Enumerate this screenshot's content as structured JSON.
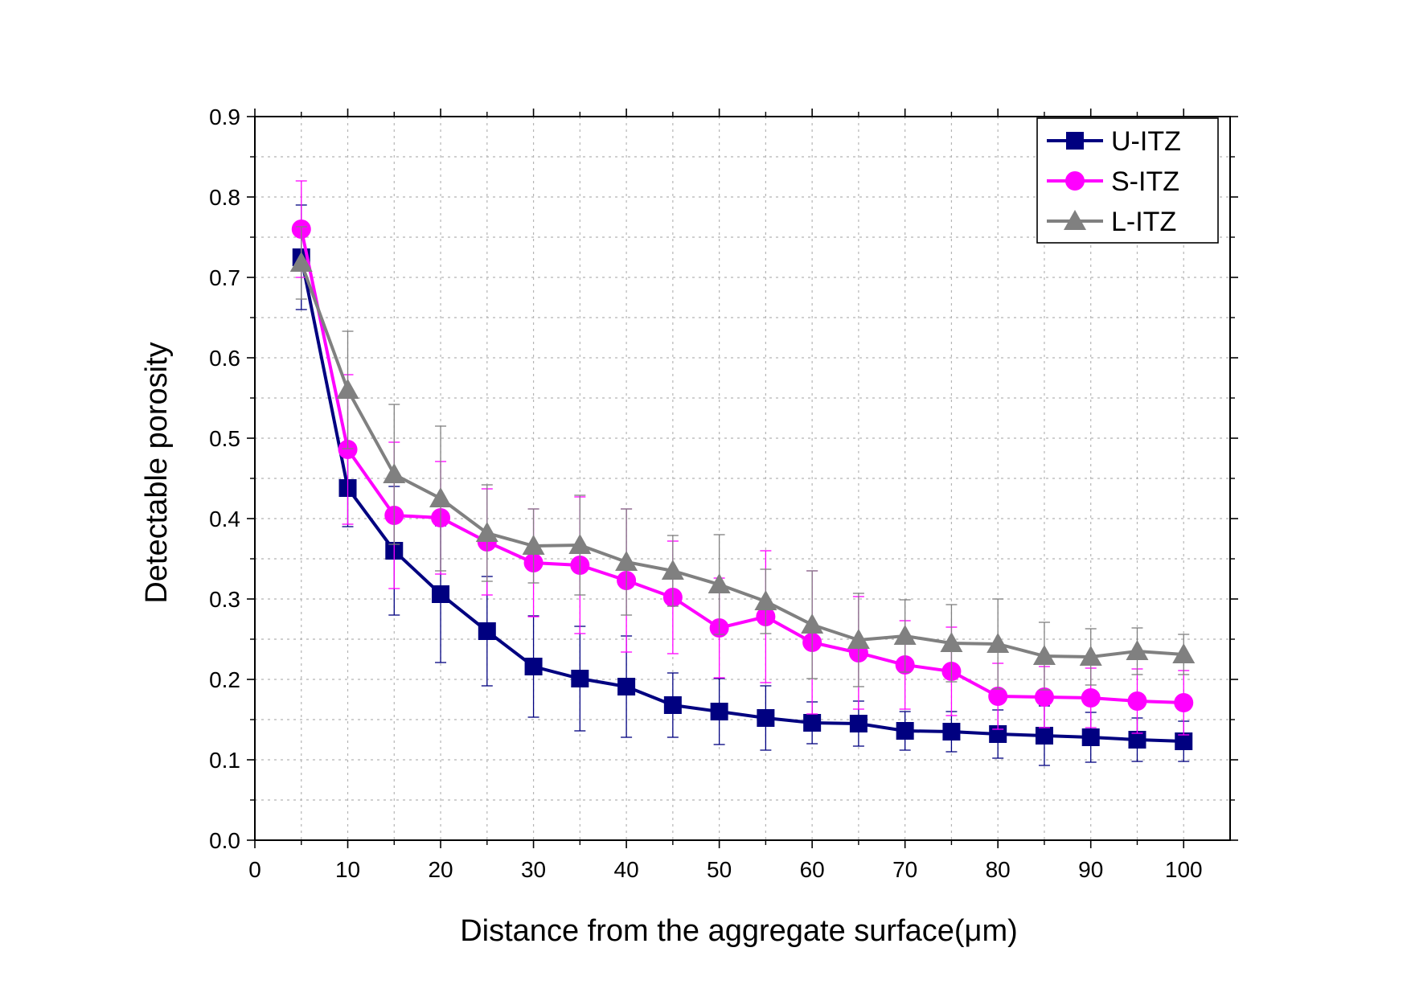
{
  "chart_data": {
    "type": "line",
    "title": "",
    "xlabel": "Distance from the aggregate surface(μm)",
    "ylabel": "Detectable porosity",
    "xlim": [
      0,
      105
    ],
    "ylim": [
      0,
      0.9
    ],
    "x_ticks": [
      "0",
      "10",
      "20",
      "30",
      "40",
      "50",
      "60",
      "70",
      "80",
      "90",
      "100"
    ],
    "y_ticks": [
      "0.0",
      "0.1",
      "0.2",
      "0.3",
      "0.4",
      "0.5",
      "0.6",
      "0.7",
      "0.8",
      "0.9"
    ],
    "grid": true,
    "legend_position": "top-right",
    "x": [
      5,
      10,
      15,
      20,
      25,
      30,
      35,
      40,
      45,
      50,
      55,
      60,
      65,
      70,
      75,
      80,
      85,
      90,
      95,
      100
    ],
    "series": [
      {
        "name": "U-ITZ",
        "color": "#000080",
        "marker": "square",
        "values": [
          0.725,
          0.438,
          0.36,
          0.306,
          0.26,
          0.216,
          0.201,
          0.191,
          0.168,
          0.16,
          0.152,
          0.146,
          0.145,
          0.136,
          0.135,
          0.132,
          0.13,
          0.128,
          0.125,
          0.123
        ],
        "errors": [
          0.065,
          0.048,
          0.08,
          0.085,
          0.068,
          0.063,
          0.065,
          0.063,
          0.04,
          0.041,
          0.04,
          0.026,
          0.028,
          0.024,
          0.025,
          0.03,
          0.037,
          0.031,
          0.027,
          0.025
        ]
      },
      {
        "name": "S-ITZ",
        "color": "#FF00FF",
        "marker": "circle",
        "values": [
          0.76,
          0.486,
          0.404,
          0.401,
          0.371,
          0.345,
          0.342,
          0.323,
          0.302,
          0.264,
          0.278,
          0.246,
          0.233,
          0.218,
          0.21,
          0.179,
          0.178,
          0.177,
          0.173,
          0.171
        ],
        "errors": [
          0.06,
          0.093,
          0.091,
          0.07,
          0.066,
          0.067,
          0.085,
          0.089,
          0.07,
          0.062,
          0.082,
          0.089,
          0.07,
          0.055,
          0.055,
          0.041,
          0.038,
          0.037,
          0.04,
          0.04
        ]
      },
      {
        "name": "L-ITZ",
        "color": "#808080",
        "marker": "triangle",
        "values": [
          0.718,
          0.56,
          0.455,
          0.425,
          0.382,
          0.366,
          0.367,
          0.346,
          0.335,
          0.318,
          0.297,
          0.268,
          0.249,
          0.254,
          0.245,
          0.244,
          0.229,
          0.228,
          0.235,
          0.231
        ],
        "errors": [
          0.045,
          0.073,
          0.087,
          0.09,
          0.06,
          0.046,
          0.062,
          0.066,
          0.044,
          0.062,
          0.04,
          0.067,
          0.058,
          0.045,
          0.048,
          0.056,
          0.042,
          0.035,
          0.029,
          0.025
        ]
      }
    ]
  }
}
